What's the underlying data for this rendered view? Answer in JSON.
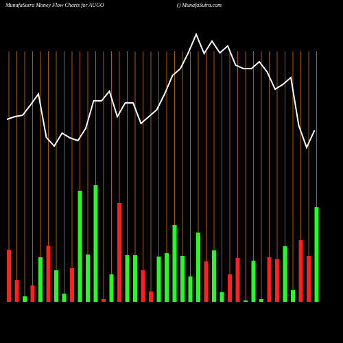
{
  "chart_data": {
    "type": "bar",
    "title": "MunafaSutra  Money Flow  Charts for AUGO",
    "subtitle": "() MunafaSutra.com",
    "ylim": [
      0,
      400
    ],
    "grid": true,
    "grid_color": "#a85a14",
    "series": [
      {
        "name": "Money flow",
        "type": "bar",
        "values": [
          76,
          32,
          8,
          24,
          65,
          82,
          46,
          12,
          49,
          162,
          69,
          170,
          4,
          40,
          144,
          68,
          68,
          46,
          15,
          66,
          71,
          112,
          67,
          37,
          101,
          59,
          75,
          14,
          40,
          64,
          2,
          60,
          4,
          65,
          62,
          81,
          17,
          90,
          67,
          138
        ],
        "colors": [
          "#ff2020",
          "#ff2020",
          "#20ff20",
          "#ff2020",
          "#20ff20",
          "#ff2020",
          "#20ff20",
          "#20ff20",
          "#ff2020",
          "#20ff20",
          "#20ff20",
          "#20ff20",
          "#ff2020",
          "#20ff20",
          "#ff2020",
          "#20ff20",
          "#20ff20",
          "#ff2020",
          "#ff2020",
          "#20ff20",
          "#20ff20",
          "#20ff20",
          "#20ff20",
          "#20ff20",
          "#20ff20",
          "#ff2020",
          "#20ff20",
          "#20ff20",
          "#ff2020",
          "#ff2020",
          "#20ff20",
          "#20ff20",
          "#20ff20",
          "#ff2020",
          "#ff2020",
          "#20ff20",
          "#20ff20",
          "#ff2020",
          "#ff2020",
          "#20ff20"
        ]
      },
      {
        "name": "Price",
        "type": "line",
        "color": "#ffffff",
        "values": [
          266,
          270,
          272,
          287,
          303,
          240,
          227,
          246,
          239,
          235,
          253,
          293,
          293,
          307,
          270,
          290,
          290,
          260,
          270,
          280,
          303,
          330,
          340,
          363,
          390,
          362,
          380,
          363,
          373,
          345,
          340,
          340,
          350,
          335,
          310,
          317,
          327,
          257,
          225,
          250
        ]
      }
    ]
  }
}
